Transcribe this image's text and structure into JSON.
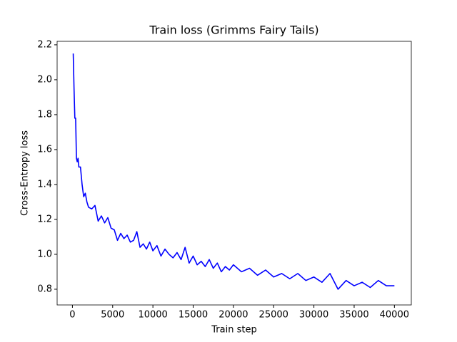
{
  "chart_data": {
    "type": "line",
    "title": "Train loss (Grimms Fairy Tails)",
    "xlabel": "Train step",
    "ylabel": "Cross-Entropy loss",
    "x": [
      100,
      200,
      300,
      400,
      500,
      600,
      700,
      800,
      1000,
      1200,
      1400,
      1600,
      1800,
      2000,
      2400,
      2800,
      3200,
      3600,
      4000,
      4400,
      4800,
      5200,
      5600,
      6000,
      6400,
      6800,
      7200,
      7600,
      8000,
      8400,
      8800,
      9200,
      9600,
      10000,
      10500,
      11000,
      11500,
      12000,
      12500,
      13000,
      13500,
      14000,
      14500,
      15000,
      15500,
      16000,
      16500,
      17000,
      17500,
      18000,
      18500,
      19000,
      19500,
      20000,
      21000,
      22000,
      23000,
      24000,
      25000,
      26000,
      27000,
      28000,
      29000,
      30000,
      31000,
      32000,
      33000,
      34000,
      35000,
      36000,
      37000,
      38000,
      39000,
      40000
    ],
    "series": [
      {
        "color": "#0000ff",
        "values": [
          2.15,
          1.95,
          1.78,
          1.78,
          1.55,
          1.53,
          1.55,
          1.5,
          1.5,
          1.4,
          1.33,
          1.35,
          1.3,
          1.27,
          1.26,
          1.28,
          1.19,
          1.22,
          1.18,
          1.21,
          1.15,
          1.14,
          1.08,
          1.12,
          1.09,
          1.11,
          1.07,
          1.08,
          1.13,
          1.04,
          1.06,
          1.03,
          1.07,
          1.02,
          1.05,
          0.99,
          1.03,
          1.0,
          0.98,
          1.01,
          0.97,
          1.04,
          0.95,
          0.99,
          0.94,
          0.96,
          0.93,
          0.97,
          0.92,
          0.95,
          0.9,
          0.93,
          0.91,
          0.94,
          0.9,
          0.92,
          0.88,
          0.91,
          0.87,
          0.89,
          0.86,
          0.89,
          0.85,
          0.87,
          0.84,
          0.89,
          0.8,
          0.85,
          0.82,
          0.84,
          0.81,
          0.85,
          0.82,
          0.82
        ]
      }
    ],
    "xlim": [
      -1900,
      42100
    ],
    "ylim": [
      0.71,
      2.22
    ],
    "xticks": [
      0,
      5000,
      10000,
      15000,
      20000,
      25000,
      30000,
      35000,
      40000
    ],
    "yticks": [
      0.8,
      {
        "value": 1,
        "label": "1.0"
      },
      1.2,
      1.4,
      1.6,
      1.8,
      {
        "value": 2,
        "label": "2.0"
      },
      2.2
    ]
  }
}
